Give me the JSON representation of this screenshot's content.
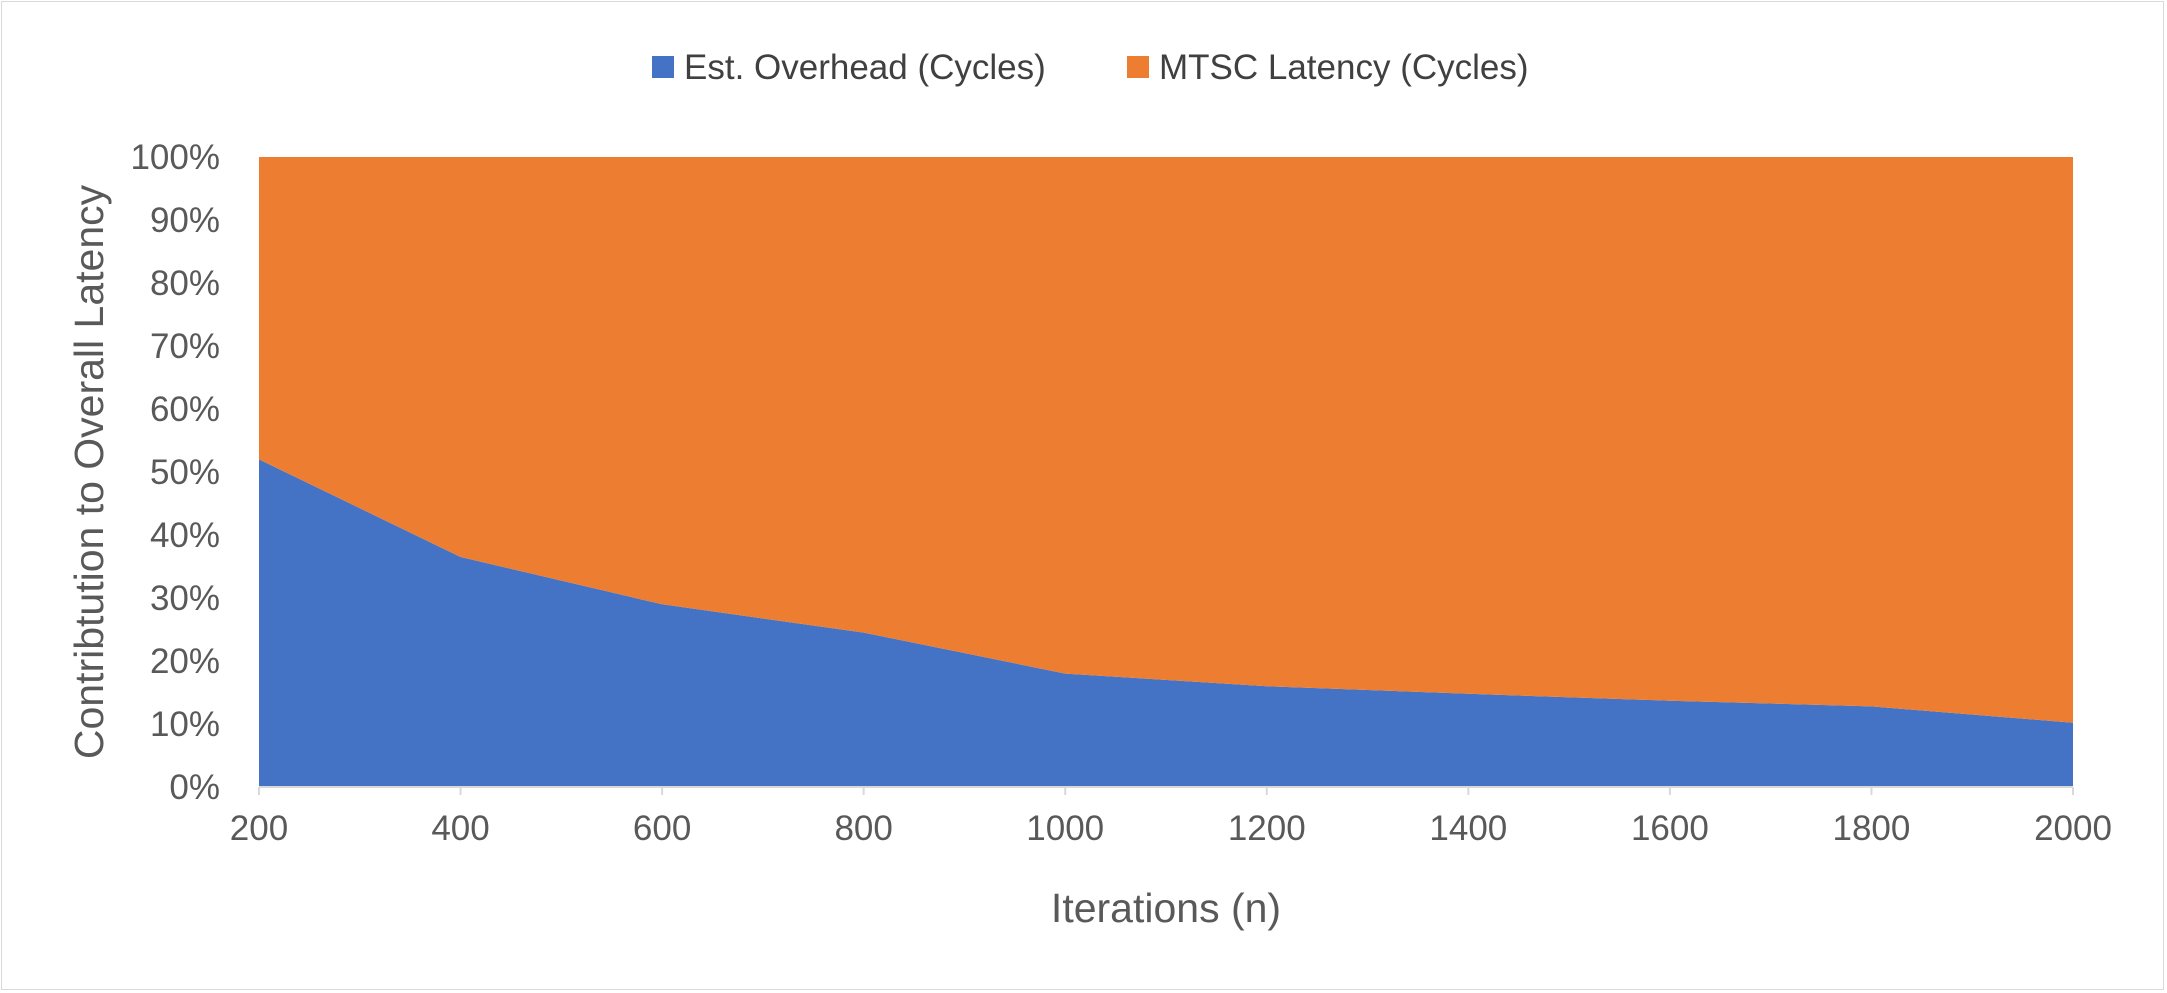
{
  "chart_data": {
    "type": "area",
    "stacked": "percent",
    "x": [
      200,
      400,
      600,
      800,
      1000,
      1200,
      1400,
      1600,
      1800,
      2000
    ],
    "series": [
      {
        "name": "Est. Overhead (Cycles)",
        "color": "#4472c4",
        "values": [
          52,
          36.5,
          29,
          24.5,
          18,
          16,
          14.8,
          13.7,
          12.8,
          10.2
        ]
      },
      {
        "name": "MTSC Latency (Cycles)",
        "color": "#ed7d31",
        "values": [
          48,
          63.5,
          71,
          75.5,
          82,
          84,
          85.2,
          86.3,
          87.2,
          89.8
        ]
      }
    ],
    "xlabel": "Iterations (n)",
    "ylabel": "Contribtution to Overall Latency",
    "xlim": [
      200,
      2000
    ],
    "ylim": [
      0,
      100
    ],
    "x_tick_labels": [
      "200",
      "400",
      "600",
      "800",
      "1000",
      "1200",
      "1400",
      "1600",
      "1800",
      "2000"
    ],
    "y_tick_labels": [
      "0%",
      "10%",
      "20%",
      "30%",
      "40%",
      "50%",
      "60%",
      "70%",
      "80%",
      "90%",
      "100%"
    ],
    "grid": false,
    "legend_position": "top-center"
  }
}
